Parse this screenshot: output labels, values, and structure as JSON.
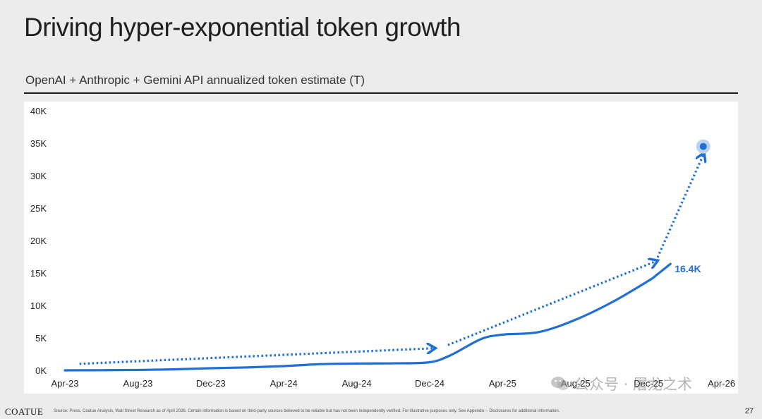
{
  "header": {
    "title": "Driving hyper-exponential token growth",
    "subtitle": "OpenAI + Anthropic + Gemini API annualized token estimate (T)"
  },
  "footer": {
    "brand": "COATUE",
    "note": "Source: Press, Coatue Analysis, Wall Street Research as of April 2026. Certain information is based on third-party sources believed to be reliable but has not been independently verified. For illustrative purposes only. See Appendix – Disclosures for additional information.",
    "page_number": "27"
  },
  "watermark": {
    "text": "公众号 · 屠龙之术",
    "icon": "wechat-icon"
  },
  "colors": {
    "line": "#1f6fd6",
    "arrow": "#1f6fd6",
    "point_halo": "#b9d3f4",
    "background": "#ececec",
    "panel": "#ffffff"
  },
  "chart_data": {
    "type": "line",
    "title": "",
    "xlabel": "",
    "ylabel": "",
    "categories": [
      "Apr-23",
      "Aug-23",
      "Dec-23",
      "Apr-24",
      "Aug-24",
      "Dec-24",
      "Apr-25",
      "Aug-25",
      "Dec-25",
      "Apr-26"
    ],
    "yticks": [
      "0K",
      "5K",
      "10K",
      "15K",
      "20K",
      "25K",
      "30K",
      "35K",
      "40K"
    ],
    "ylim": [
      0,
      40000
    ],
    "grid": false,
    "series": [
      {
        "values": [
          [
            0,
            0
          ],
          [
            0.5,
            20
          ],
          [
            1,
            60
          ],
          [
            1.5,
            150
          ],
          [
            2,
            330
          ],
          [
            2.5,
            450
          ],
          [
            3,
            650
          ],
          [
            3.5,
            950
          ],
          [
            4,
            1050
          ],
          [
            4.5,
            1080
          ],
          [
            5,
            1250
          ],
          [
            5.3,
            2400
          ],
          [
            5.7,
            4800
          ],
          [
            6,
            5500
          ],
          [
            6.5,
            5900
          ],
          [
            7,
            7800
          ],
          [
            7.5,
            10500
          ],
          [
            8,
            13800
          ],
          [
            8.1,
            14600
          ],
          [
            8.2,
            15500
          ],
          [
            8.3,
            16400
          ]
        ]
      }
    ],
    "annotations": [
      {
        "text": "16.4K",
        "x": 8.3,
        "y": 16400
      }
    ],
    "trend_arrows": [
      {
        "from": [
          0.2,
          1000
        ],
        "to": [
          5.05,
          3400
        ]
      },
      {
        "from": [
          5.25,
          3900
        ],
        "to": [
          8.1,
          16800
        ]
      },
      {
        "from": [
          8.1,
          16800
        ],
        "to": [
          8.75,
          33200
        ]
      }
    ],
    "projection_point": {
      "x": 8.75,
      "y": 34500
    }
  }
}
